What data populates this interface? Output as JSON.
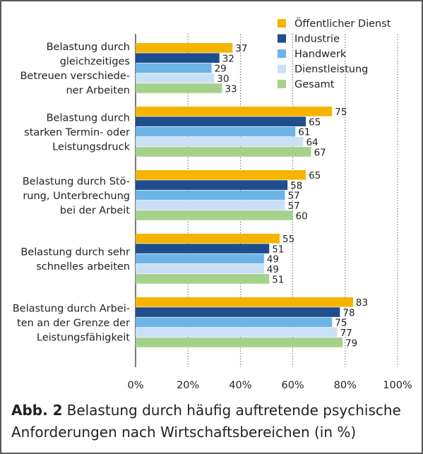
{
  "caption": {
    "label": "Abb. 2",
    "text": "Belastung durch häufig auftretende psychische Anforderungen nach Wirtschaftsbereichen (in %)"
  },
  "chart_data": {
    "type": "bar",
    "orientation": "horizontal",
    "categories": [
      [
        "Belastung durch",
        "gleichzeitiges",
        "Betreuen verschiede-",
        "ner Arbeiten"
      ],
      [
        "Belastung durch",
        "starken Termin- oder",
        "Leistungsdruck"
      ],
      [
        "Belastung durch Stö-",
        "rung, Unterbrechung",
        "bei der Arbeit"
      ],
      [
        "Belastung durch sehr",
        "schnelles arbeiten"
      ],
      [
        "Belastung durch Arbei-",
        "ten an der Grenze der",
        "Leistungsfähigkeit"
      ]
    ],
    "series": [
      {
        "name": "Öffentlicher Dienst",
        "color": "#f5b400",
        "values": [
          37,
          75,
          65,
          55,
          83
        ]
      },
      {
        "name": "Industrie",
        "color": "#1f4e8c",
        "values": [
          32,
          65,
          58,
          51,
          78
        ]
      },
      {
        "name": "Handwerk",
        "color": "#6cb4e6",
        "values": [
          29,
          61,
          57,
          49,
          75
        ]
      },
      {
        "name": "Dienstleistung",
        "color": "#c9e0f6",
        "values": [
          30,
          64,
          57,
          49,
          77
        ]
      },
      {
        "name": "Gesamt",
        "color": "#a6d18a",
        "values": [
          33,
          67,
          60,
          51,
          79
        ]
      }
    ],
    "xlim": [
      0,
      100
    ],
    "xticks": [
      "0%",
      "20%",
      "40%",
      "60%",
      "80%",
      "100%"
    ],
    "grid": true,
    "legend": "top-right",
    "data_labels": true
  }
}
